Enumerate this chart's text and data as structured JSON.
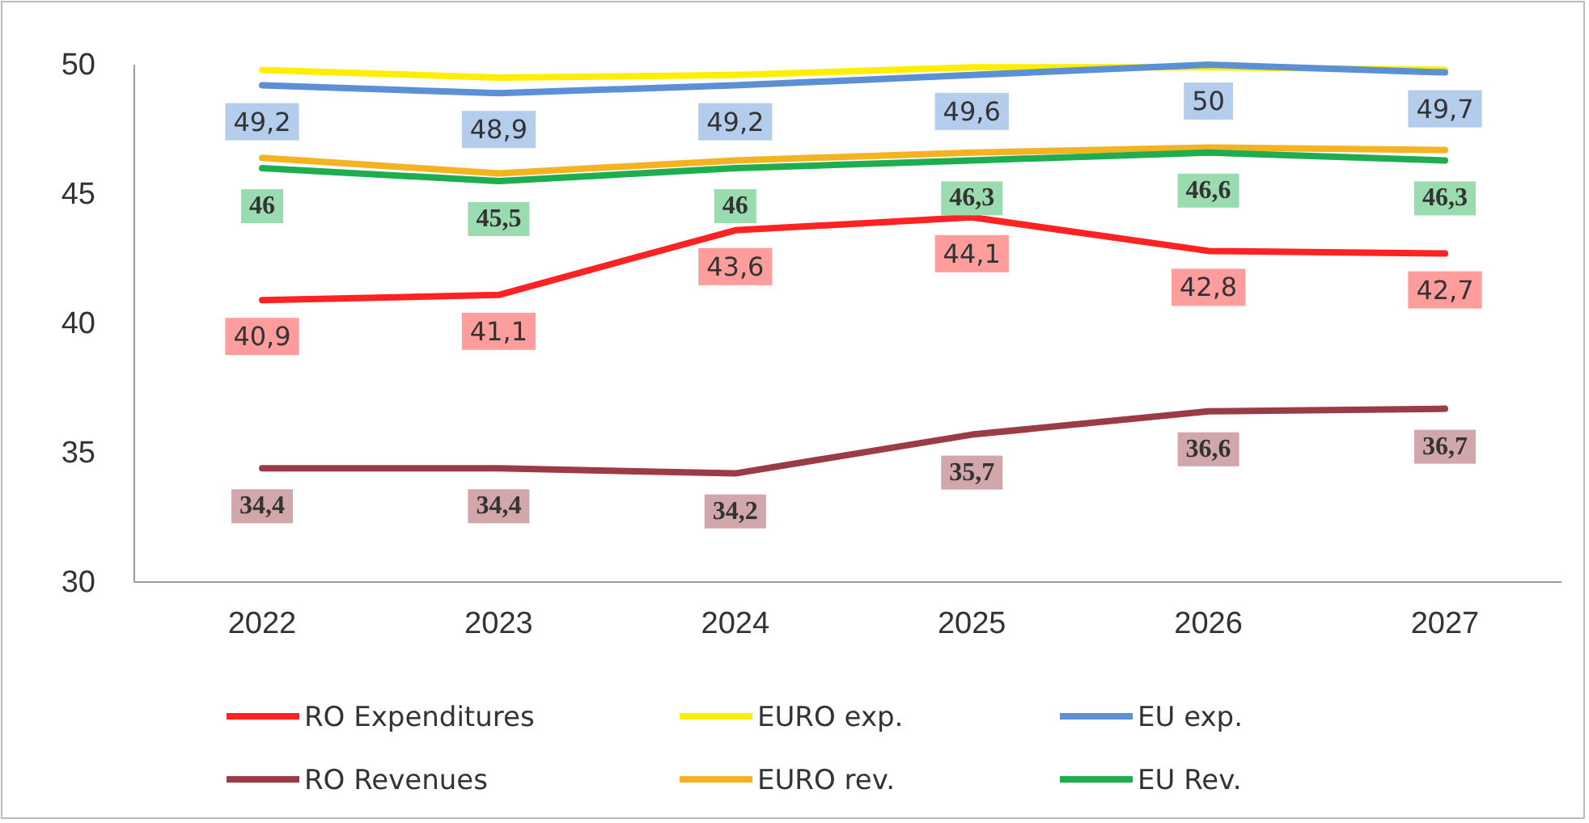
{
  "chart_data": {
    "type": "line",
    "categories": [
      "2022",
      "2023",
      "2024",
      "2025",
      "2026",
      "2027"
    ],
    "ylim": [
      30,
      50
    ],
    "yticks": [
      30,
      35,
      40,
      45,
      50
    ],
    "grid": false,
    "legend": "bottom",
    "marker": "none",
    "line_style": "solid",
    "series": [
      {
        "name": "RO Expenditures",
        "color": "#ff2222",
        "values": [
          40.9,
          41.1,
          43.6,
          44.1,
          42.8,
          42.7
        ],
        "value_labels": [
          "40,9",
          "41,1",
          "43,6",
          "44,1",
          "42,8",
          "42,7"
        ]
      },
      {
        "name": "EURO exp.",
        "color": "#ffee00",
        "values": [
          49.8,
          49.5,
          49.6,
          49.9,
          49.9,
          49.8
        ]
      },
      {
        "name": "EU exp.",
        "color": "#5b8fd6",
        "values": [
          49.2,
          48.9,
          49.2,
          49.6,
          50,
          49.7
        ],
        "value_labels": [
          "49,2",
          "48,9",
          "49,2",
          "49,6",
          "50",
          "49,7"
        ]
      },
      {
        "name": "RO Revenues",
        "color": "#9a3b45",
        "values": [
          34.4,
          34.4,
          34.2,
          35.7,
          36.6,
          36.7
        ],
        "value_labels": [
          "34,4",
          "34,4",
          "34,2",
          "35,7",
          "36,6",
          "36,7"
        ]
      },
      {
        "name": "EURO rev.",
        "color": "#f5b324",
        "values": [
          46.4,
          45.8,
          46.3,
          46.6,
          46.8,
          46.7
        ]
      },
      {
        "name": "EU Rev.",
        "color": "#1fae4f",
        "values": [
          46,
          45.5,
          46,
          46.3,
          46.6,
          46.3
        ],
        "value_labels": [
          "46",
          "45,5",
          "46",
          "46,3",
          "46,6",
          "46,3"
        ]
      }
    ]
  }
}
